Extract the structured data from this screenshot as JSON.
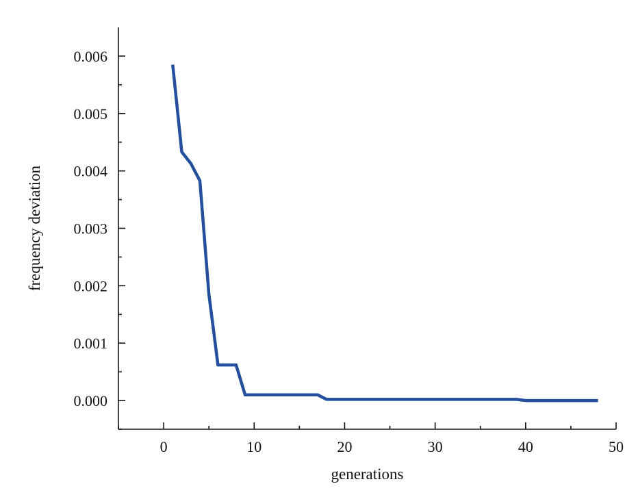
{
  "chart_data": {
    "type": "line",
    "title": "",
    "xlabel": "generations",
    "ylabel": "frequency deviation",
    "xlim": [
      -5,
      50
    ],
    "ylim": [
      -0.0005,
      0.0065
    ],
    "grid": false,
    "legend": "none",
    "x_ticks": [
      0,
      10,
      20,
      30,
      40,
      50
    ],
    "x_tick_labels": [
      "0",
      "10",
      "20",
      "30",
      "40",
      "50"
    ],
    "x_minor_ticks": [
      -5,
      5,
      15,
      25,
      35,
      45
    ],
    "y_ticks": [
      0,
      0.001,
      0.002,
      0.003,
      0.004,
      0.005,
      0.006
    ],
    "y_tick_labels": [
      "0.000",
      "0.001",
      "0.002",
      "0.003",
      "0.004",
      "0.005",
      "0.006"
    ],
    "y_minor_ticks": [
      -0.0005,
      0.0005,
      0.0015,
      0.0025,
      0.0035,
      0.0045,
      0.0055
    ],
    "series": [
      {
        "color": "#234f9c",
        "x": [
          1,
          2,
          3,
          4,
          5,
          6,
          7,
          8,
          9,
          10,
          11,
          12,
          13,
          14,
          15,
          16,
          17,
          18,
          19,
          20,
          21,
          22,
          23,
          24,
          25,
          26,
          27,
          28,
          29,
          30,
          31,
          32,
          33,
          34,
          35,
          36,
          37,
          38,
          39,
          40,
          41,
          42,
          43,
          44,
          45,
          46,
          47,
          48
        ],
        "values": [
          0.00585,
          0.00433,
          0.00413,
          0.00383,
          0.00185,
          0.00062,
          0.00062,
          0.00062,
          0.0001,
          0.0001,
          0.0001,
          0.0001,
          0.0001,
          0.0001,
          0.0001,
          0.0001,
          0.0001,
          2e-05,
          2e-05,
          2e-05,
          2e-05,
          2e-05,
          2e-05,
          2e-05,
          2e-05,
          2e-05,
          2e-05,
          2e-05,
          2e-05,
          2e-05,
          2e-05,
          2e-05,
          2e-05,
          2e-05,
          2e-05,
          2e-05,
          2e-05,
          2e-05,
          2e-05,
          0.0,
          0.0,
          0.0,
          0.0,
          0.0,
          0.0,
          0.0,
          0.0,
          0.0
        ]
      }
    ]
  }
}
